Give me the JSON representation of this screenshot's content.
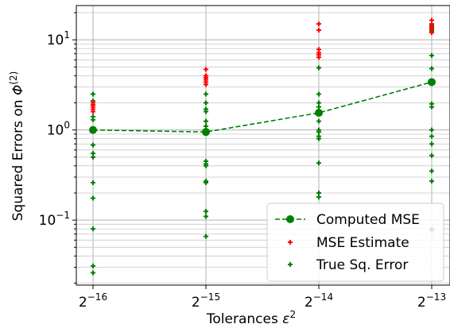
{
  "chart_data": {
    "type": "scatter",
    "title": "",
    "xlabel": {
      "base": "Tolerances ",
      "var": "ε",
      "sup": "2"
    },
    "ylabel": {
      "base": "Squared Errors on ",
      "var": "Φ",
      "sup": "(2)"
    },
    "y_scale": "log",
    "ylim": [
      0.019,
      24
    ],
    "grid": true,
    "legend_position": "lower-right",
    "x": [
      {
        "label_base": "2",
        "label_exp": "−16"
      },
      {
        "label_base": "2",
        "label_exp": "−15"
      },
      {
        "label_base": "2",
        "label_exp": "−14"
      },
      {
        "label_base": "2",
        "label_exp": "−13"
      }
    ],
    "y_ticks": [
      {
        "value": 0.1,
        "base": "10",
        "exp": "−1"
      },
      {
        "value": 1,
        "base": "10",
        "exp": "0"
      },
      {
        "value": 10,
        "base": "10",
        "exp": "1"
      }
    ],
    "series": [
      {
        "name": "Computed MSE",
        "style": "line-dashed-circle",
        "color": "#008000",
        "values": [
          1.0,
          0.95,
          1.55,
          3.4
        ]
      },
      {
        "name": "MSE Estimate",
        "style": "plus",
        "color": "#ff0000",
        "points": [
          [
            0,
            1.6
          ],
          [
            0,
            1.7
          ],
          [
            0,
            1.8
          ],
          [
            0,
            1.9
          ],
          [
            0,
            2.0
          ],
          [
            1,
            3.2
          ],
          [
            1,
            3.4
          ],
          [
            1,
            3.6
          ],
          [
            1,
            3.8
          ],
          [
            1,
            4.0
          ],
          [
            1,
            4.7
          ],
          [
            2,
            6.4
          ],
          [
            2,
            6.8
          ],
          [
            2,
            7.2
          ],
          [
            2,
            7.8
          ],
          [
            2,
            12.8
          ],
          [
            2,
            15.0
          ],
          [
            3,
            12.0
          ],
          [
            3,
            13.0
          ],
          [
            3,
            13.5
          ],
          [
            3,
            14.0
          ],
          [
            3,
            15.0
          ],
          [
            3,
            16.5
          ]
        ]
      },
      {
        "name": "True Sq. Error",
        "style": "plus",
        "color": "#008000",
        "points": [
          [
            0,
            2.5
          ],
          [
            0,
            2.1
          ],
          [
            0,
            1.9
          ],
          [
            0,
            1.7
          ],
          [
            0,
            1.4
          ],
          [
            0,
            1.3
          ],
          [
            0,
            0.68
          ],
          [
            0,
            0.55
          ],
          [
            0,
            0.5
          ],
          [
            0,
            0.26
          ],
          [
            0,
            0.175
          ],
          [
            0,
            0.08
          ],
          [
            0,
            0.031
          ],
          [
            0,
            0.026
          ],
          [
            1,
            2.5
          ],
          [
            1,
            2.0
          ],
          [
            1,
            1.7
          ],
          [
            1,
            1.6
          ],
          [
            1,
            1.25
          ],
          [
            1,
            1.1
          ],
          [
            1,
            0.45
          ],
          [
            1,
            0.42
          ],
          [
            1,
            0.4
          ],
          [
            1,
            0.27
          ],
          [
            1,
            0.26
          ],
          [
            1,
            0.125
          ],
          [
            1,
            0.11
          ],
          [
            1,
            0.066
          ],
          [
            2,
            2.5
          ],
          [
            2,
            2.0
          ],
          [
            2,
            1.8
          ],
          [
            2,
            1.25
          ],
          [
            2,
            1.0
          ],
          [
            2,
            0.95
          ],
          [
            2,
            0.85
          ],
          [
            2,
            0.8
          ],
          [
            2,
            0.43
          ],
          [
            2,
            0.2
          ],
          [
            2,
            0.18
          ],
          [
            2,
            4.9
          ],
          [
            3,
            6.7
          ],
          [
            3,
            4.8
          ],
          [
            3,
            1.95
          ],
          [
            3,
            1.8
          ],
          [
            3,
            1.0
          ],
          [
            3,
            0.85
          ],
          [
            3,
            0.7
          ],
          [
            3,
            0.52
          ],
          [
            3,
            0.35
          ],
          [
            3,
            0.27
          ],
          [
            3,
            0.08
          ],
          [
            3,
            0.077
          ],
          [
            3,
            14.5
          ],
          [
            3,
            12.5
          ]
        ]
      }
    ]
  }
}
